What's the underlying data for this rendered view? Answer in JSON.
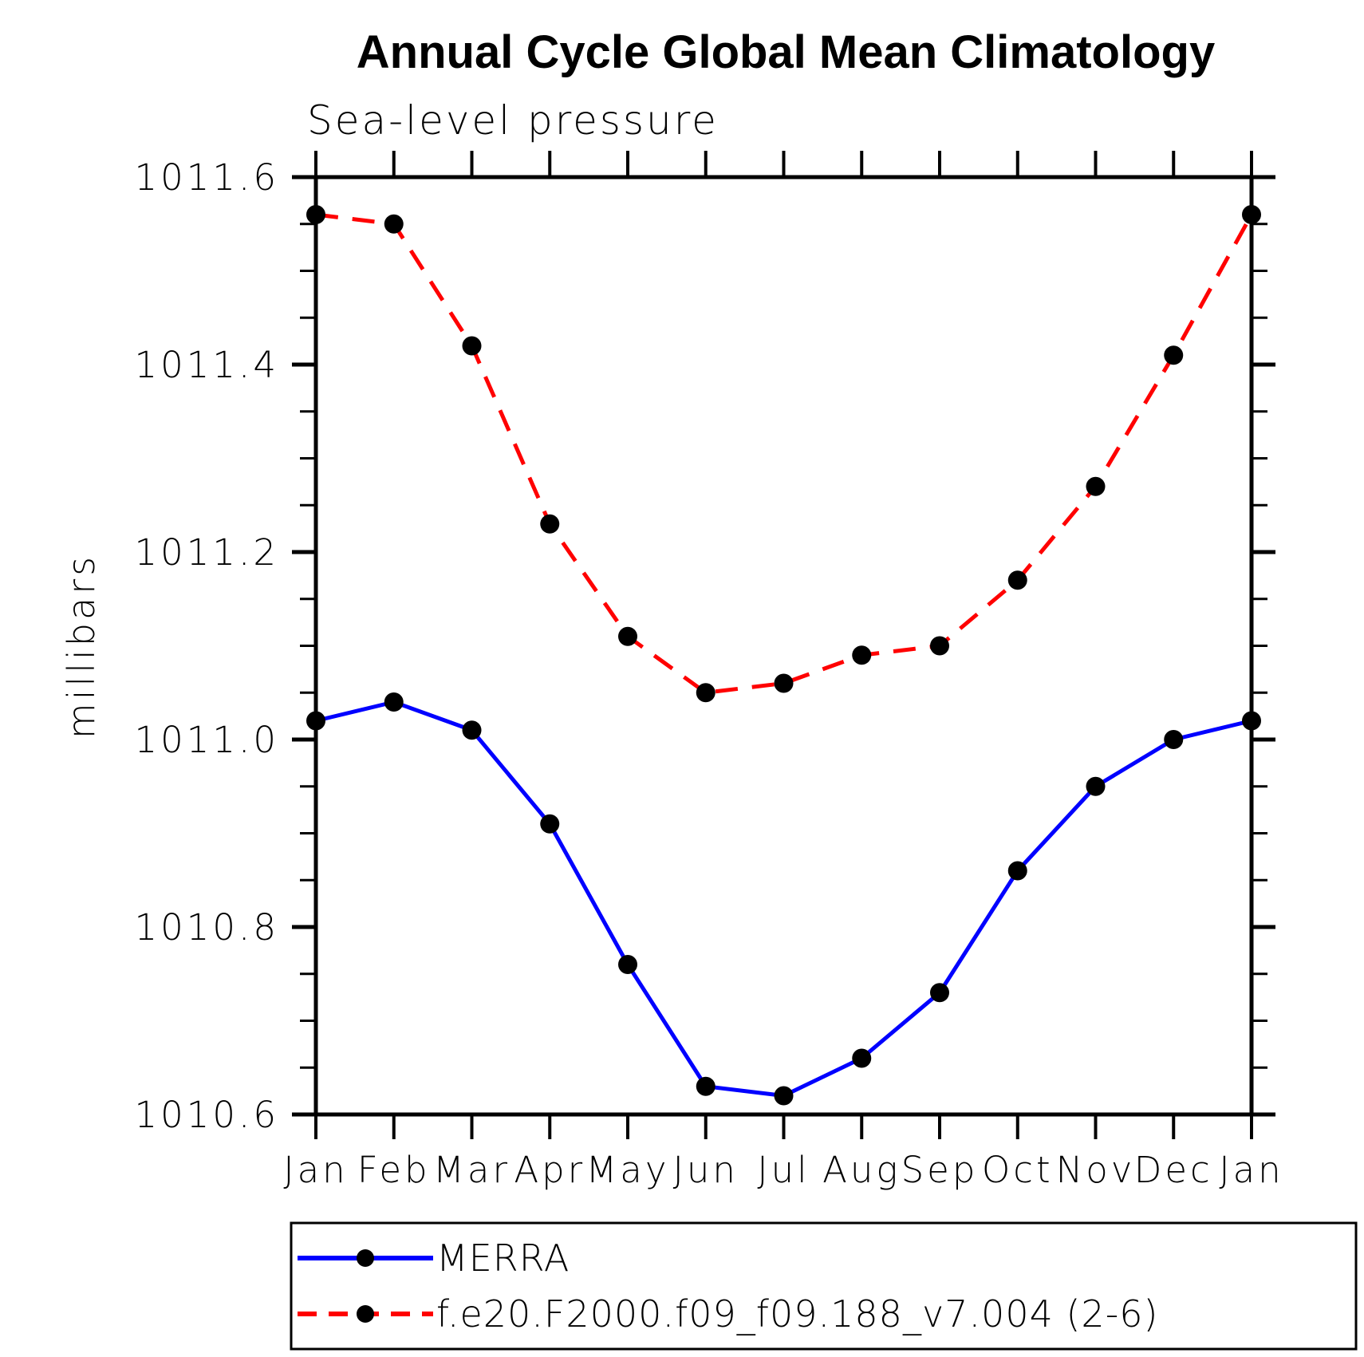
{
  "chart_data": {
    "type": "line",
    "title": "Annual Cycle Global Mean Climatology",
    "subtitle": "Sea-level pressure",
    "ylabel": "millibars",
    "xlabel": "",
    "categories": [
      "Jan",
      "Feb",
      "Mar",
      "Apr",
      "May",
      "Jun",
      "Jul",
      "Aug",
      "Sep",
      "Oct",
      "Nov",
      "Dec",
      "Jan"
    ],
    "ylim": [
      1010.6,
      1011.6
    ],
    "ytick_major_interval": 0.2,
    "ytick_minor_interval": 0.05,
    "ytick_labels": [
      "1010.6",
      "1010.8",
      "1011.0",
      "1011.2",
      "1011.4",
      "1011.6"
    ],
    "grid": false,
    "legend_position": "bottom",
    "series": [
      {
        "name": "MERRA",
        "line_color": "#0000ff",
        "line_style": "solid",
        "marker": "circle",
        "marker_color": "#000000",
        "values": [
          1011.02,
          1011.04,
          1011.01,
          1010.91,
          1010.76,
          1010.63,
          1010.62,
          1010.66,
          1010.73,
          1010.86,
          1010.95,
          1011.0,
          1011.02
        ]
      },
      {
        "name": "f.e20.F2000.f09_f09.188_v7.004 (2-6)",
        "line_color": "#ff0000",
        "line_style": "dashed",
        "marker": "circle",
        "marker_color": "#000000",
        "values": [
          1011.56,
          1011.55,
          1011.42,
          1011.23,
          1011.11,
          1011.05,
          1011.06,
          1011.09,
          1011.1,
          1011.17,
          1011.27,
          1011.41,
          1011.56
        ]
      }
    ],
    "axis_color": "#000000",
    "background_color": "#ffffff"
  }
}
